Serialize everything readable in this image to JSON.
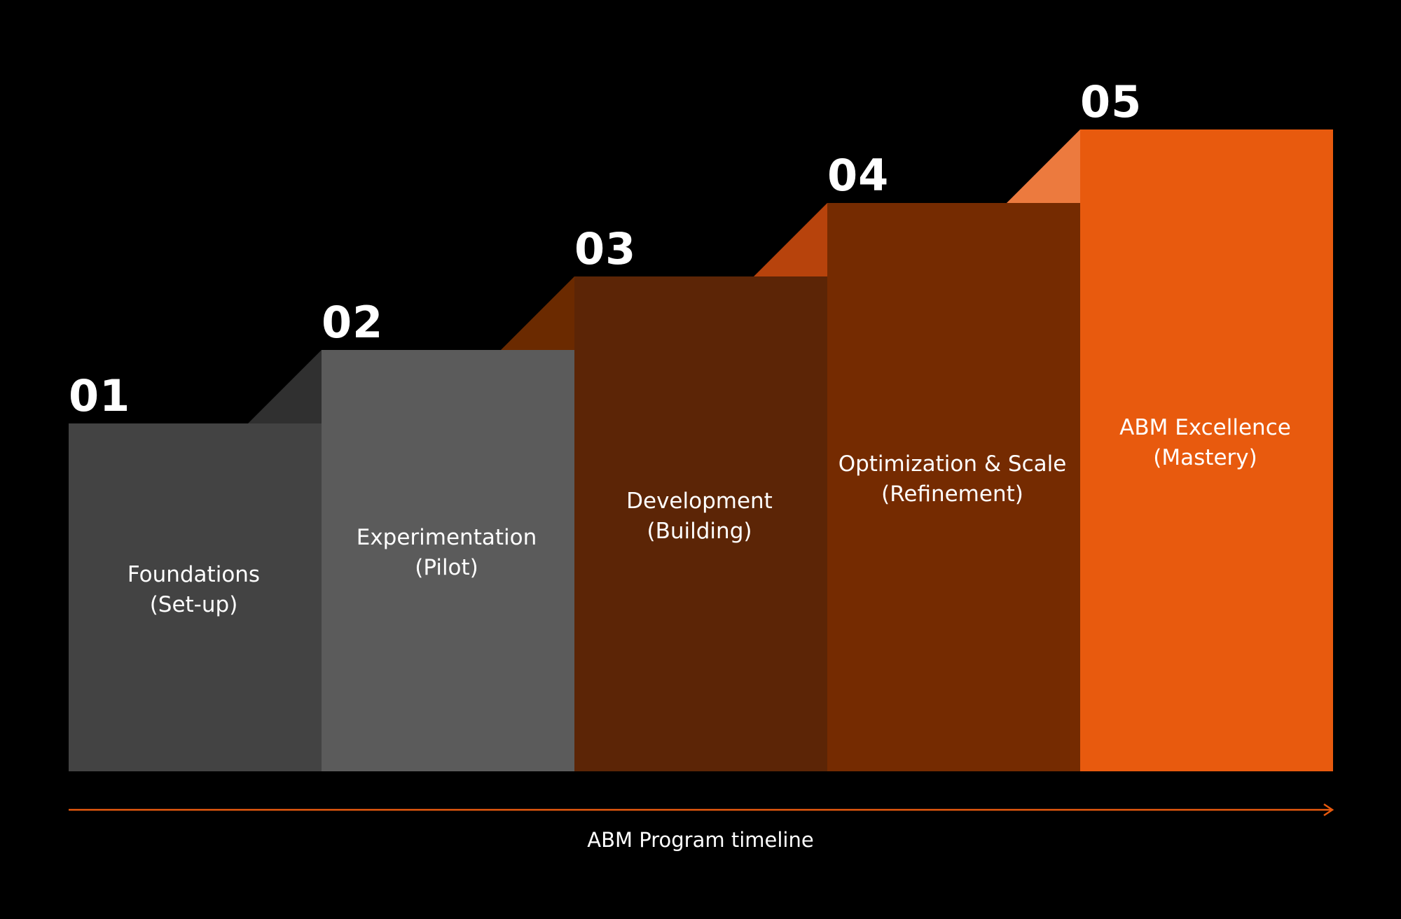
{
  "colors": {
    "background": "#000000",
    "accent_orange": "#e85a0e",
    "timeline_line": "#e85a0e",
    "text": "#ffffff"
  },
  "stages": [
    {
      "number": "01",
      "title": "Foundations",
      "subtitle": "(Set-up)",
      "block_color": "#434343",
      "bevel_color": "#303030"
    },
    {
      "number": "02",
      "title": "Experimentation",
      "subtitle": "(Pilot)",
      "block_color": "#5b5b5b",
      "bevel_color": "#6b2a00"
    },
    {
      "number": "03",
      "title": "Development",
      "subtitle": "(Building)",
      "block_color": "#5c2506",
      "bevel_color": "#b7430c"
    },
    {
      "number": "04",
      "title": "Optimization & Scale",
      "subtitle": "(Refinement)",
      "block_color": "#752b01",
      "bevel_color": "#ec7a3e"
    },
    {
      "number": "05",
      "title": "ABM Excellence",
      "subtitle": "(Mastery)",
      "block_color": "#e85a0e",
      "bevel_color": null
    }
  ],
  "timeline": {
    "label": "ABM Program timeline",
    "arrow_icon": "arrow-right-icon"
  }
}
